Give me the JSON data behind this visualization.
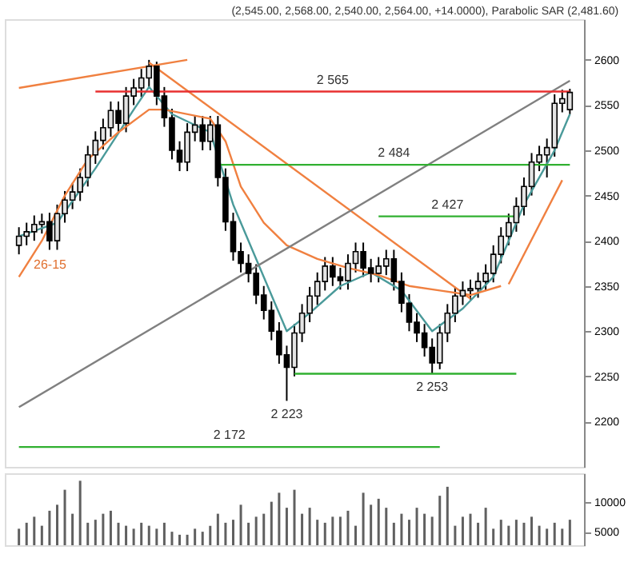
{
  "chart_data": [
    {
      "type": "candlestick",
      "title": "(2,545.00, 2,568.00, 2,540.00, 2,564.00, +14.0000), Parabolic SAR (2,481.60)",
      "categories": [
        null,
        null,
        null,
        null,
        null,
        null,
        null,
        null,
        null,
        null,
        null,
        null,
        null,
        null,
        null,
        null,
        null,
        null,
        null,
        null,
        null,
        null,
        null,
        null,
        null,
        null,
        null,
        null,
        null,
        null,
        null,
        null,
        null,
        null,
        null,
        null,
        null,
        null,
        null,
        null,
        null,
        null,
        null,
        null,
        null,
        null,
        null,
        null,
        null,
        null,
        null,
        null,
        null,
        null,
        null,
        null,
        null,
        null,
        null,
        null,
        null,
        null,
        null,
        null,
        null,
        null,
        null,
        null,
        null,
        null,
        null,
        null,
        null
      ],
      "ohlc": [
        [
          2395,
          2415,
          2385,
          2405
        ],
        [
          2405,
          2420,
          2395,
          2410
        ],
        [
          2410,
          2428,
          2400,
          2418
        ],
        [
          2418,
          2430,
          2408,
          2421
        ],
        [
          2421,
          2431,
          2390,
          2400
        ],
        [
          2400,
          2440,
          2390,
          2430
        ],
        [
          2430,
          2455,
          2420,
          2445
        ],
        [
          2445,
          2464,
          2435,
          2454
        ],
        [
          2454,
          2480,
          2444,
          2470
        ],
        [
          2470,
          2505,
          2460,
          2495
        ],
        [
          2495,
          2521,
          2485,
          2511
        ],
        [
          2511,
          2535,
          2501,
          2525
        ],
        [
          2525,
          2554,
          2515,
          2544
        ],
        [
          2544,
          2554,
          2520,
          2530
        ],
        [
          2530,
          2570,
          2520,
          2560
        ],
        [
          2560,
          2579,
          2550,
          2569
        ],
        [
          2569,
          2590,
          2559,
          2580
        ],
        [
          2580,
          2600,
          2570,
          2593
        ],
        [
          2593,
          2598,
          2550,
          2560
        ],
        [
          2560,
          2570,
          2526,
          2536
        ],
        [
          2536,
          2546,
          2490,
          2500
        ],
        [
          2500,
          2510,
          2477,
          2487
        ],
        [
          2487,
          2530,
          2477,
          2520
        ],
        [
          2520,
          2538,
          2510,
          2528
        ],
        [
          2528,
          2538,
          2500,
          2510
        ],
        [
          2510,
          2538,
          2500,
          2528
        ],
        [
          2528,
          2538,
          2460,
          2470
        ],
        [
          2470,
          2480,
          2411,
          2421
        ],
        [
          2421,
          2431,
          2378,
          2388
        ],
        [
          2388,
          2398,
          2365,
          2375
        ],
        [
          2375,
          2385,
          2354,
          2364
        ],
        [
          2364,
          2374,
          2330,
          2340
        ],
        [
          2340,
          2350,
          2313,
          2323
        ],
        [
          2323,
          2333,
          2290,
          2300
        ],
        [
          2300,
          2310,
          2264,
          2274
        ],
        [
          2274,
          2284,
          2223,
          2260
        ],
        [
          2260,
          2308,
          2250,
          2298
        ],
        [
          2298,
          2330,
          2288,
          2320
        ],
        [
          2320,
          2349,
          2310,
          2339
        ],
        [
          2339,
          2365,
          2329,
          2355
        ],
        [
          2355,
          2382,
          2345,
          2372
        ],
        [
          2372,
          2382,
          2350,
          2360
        ],
        [
          2360,
          2370,
          2346,
          2356
        ],
        [
          2356,
          2385,
          2346,
          2375
        ],
        [
          2375,
          2398,
          2365,
          2388
        ],
        [
          2388,
          2398,
          2360,
          2370
        ],
        [
          2370,
          2380,
          2354,
          2364
        ],
        [
          2364,
          2382,
          2354,
          2372
        ],
        [
          2372,
          2390,
          2362,
          2380
        ],
        [
          2380,
          2390,
          2345,
          2355
        ],
        [
          2355,
          2365,
          2321,
          2331
        ],
        [
          2331,
          2341,
          2300,
          2310
        ],
        [
          2310,
          2320,
          2288,
          2298
        ],
        [
          2298,
          2308,
          2272,
          2282
        ],
        [
          2282,
          2292,
          2253,
          2265
        ],
        [
          2265,
          2308,
          2258,
          2298
        ],
        [
          2298,
          2330,
          2288,
          2320
        ],
        [
          2320,
          2349,
          2310,
          2339
        ],
        [
          2339,
          2355,
          2329,
          2345
        ],
        [
          2345,
          2357,
          2335,
          2347
        ],
        [
          2347,
          2365,
          2337,
          2355
        ],
        [
          2355,
          2374,
          2345,
          2364
        ],
        [
          2364,
          2395,
          2354,
          2385
        ],
        [
          2385,
          2415,
          2375,
          2405
        ],
        [
          2405,
          2430,
          2395,
          2420
        ],
        [
          2420,
          2448,
          2410,
          2438
        ],
        [
          2438,
          2470,
          2428,
          2460
        ],
        [
          2460,
          2497,
          2450,
          2487
        ],
        [
          2487,
          2505,
          2477,
          2495
        ],
        [
          2495,
          2513,
          2470,
          2503
        ],
        [
          2503,
          2562,
          2493,
          2552
        ],
        [
          2552,
          2567,
          2542,
          2557
        ],
        [
          2545,
          2568,
          2540,
          2564
        ]
      ],
      "series": [
        {
          "type": "line",
          "color": "#4a9a9a",
          "values": [
            2405,
            null,
            null,
            null,
            null,
            2420,
            null,
            null,
            null,
            null,
            2480,
            null,
            null,
            null,
            null,
            2545,
            null,
            2570,
            null,
            null,
            2540,
            null,
            null,
            null,
            null,
            2520,
            null,
            null,
            2440,
            null,
            null,
            null,
            2360,
            null,
            null,
            2300,
            null,
            null,
            2320,
            null,
            null,
            null,
            2350,
            null,
            null,
            null,
            2365,
            null,
            null,
            null,
            2345,
            null,
            null,
            null,
            2300,
            null,
            null,
            null,
            2325,
            null,
            null,
            null,
            2360,
            null,
            null,
            null,
            2440,
            null,
            null,
            null,
            2500,
            null,
            2540
          ]
        },
        {
          "type": "line",
          "color": "#f08040",
          "values": [
            2360,
            null,
            null,
            2400,
            null,
            null,
            2450,
            null,
            null,
            2490,
            null,
            null,
            null,
            2520,
            null,
            null,
            null,
            2545,
            null,
            2545,
            null,
            null,
            null,
            null,
            null,
            2535,
            null,
            2510,
            null,
            2460,
            null,
            null,
            2420,
            null,
            null,
            2395,
            null,
            null,
            null,
            2380,
            null,
            null,
            null,
            2370,
            null,
            null,
            null,
            2362,
            null,
            null,
            null,
            2350,
            null,
            null,
            null,
            2345,
            null,
            null,
            null,
            2340,
            null,
            null,
            null,
            2350,
            null,
            null,
            null,
            null,
            null,
            null,
            null,
            null,
            null
          ]
        },
        {
          "type": "line",
          "color": "#f08040",
          "values": [
            2569,
            null,
            null,
            null,
            null,
            null,
            null,
            null,
            null,
            null,
            null,
            null,
            null,
            null,
            null,
            null,
            null,
            null,
            null,
            null,
            null,
            null,
            2600,
            null,
            null,
            null,
            null,
            null,
            null,
            null,
            null,
            null,
            null,
            null,
            null,
            null,
            null,
            null,
            null,
            null,
            null,
            null,
            null,
            null,
            null,
            null,
            null,
            null,
            null,
            null,
            null,
            null,
            null,
            null,
            null,
            null,
            null,
            null,
            null,
            null,
            null,
            null,
            null,
            null,
            null,
            null,
            null,
            null,
            null,
            null,
            null,
            null,
            null
          ]
        },
        {
          "type": "line",
          "color": "#f08040",
          "values": [
            null,
            null,
            null,
            null,
            null,
            null,
            null,
            null,
            null,
            null,
            null,
            null,
            null,
            null,
            null,
            null,
            null,
            2597,
            null,
            null,
            null,
            null,
            null,
            null,
            null,
            null,
            null,
            null,
            null,
            null,
            null,
            null,
            null,
            null,
            null,
            null,
            null,
            null,
            null,
            null,
            null,
            null,
            null,
            null,
            null,
            null,
            null,
            null,
            null,
            null,
            null,
            null,
            null,
            null,
            null,
            null,
            null,
            null,
            null,
            2336,
            null,
            null,
            null,
            null,
            null,
            null,
            null,
            null,
            null,
            null,
            null,
            null,
            null
          ]
        },
        {
          "type": "line",
          "color": "#f08040",
          "values": [
            null,
            null,
            null,
            null,
            null,
            null,
            null,
            null,
            null,
            null,
            null,
            null,
            null,
            null,
            null,
            null,
            null,
            null,
            null,
            null,
            null,
            null,
            null,
            null,
            null,
            null,
            null,
            null,
            null,
            null,
            null,
            null,
            null,
            null,
            null,
            null,
            null,
            null,
            null,
            null,
            null,
            null,
            null,
            null,
            null,
            null,
            null,
            null,
            null,
            null,
            null,
            null,
            null,
            null,
            null,
            null,
            null,
            null,
            null,
            null,
            null,
            null,
            null,
            null,
            2352,
            null,
            null,
            null,
            null,
            null,
            null,
            2467,
            null
          ]
        },
        {
          "type": "line",
          "color": "#808080",
          "values": [
            2216,
            null,
            null,
            null,
            null,
            null,
            null,
            null,
            null,
            null,
            null,
            null,
            null,
            null,
            null,
            null,
            null,
            null,
            null,
            null,
            null,
            null,
            null,
            null,
            null,
            null,
            null,
            null,
            null,
            null,
            null,
            null,
            null,
            null,
            null,
            null,
            null,
            null,
            null,
            null,
            null,
            null,
            null,
            null,
            null,
            null,
            null,
            null,
            null,
            null,
            null,
            null,
            null,
            null,
            null,
            null,
            null,
            null,
            null,
            null,
            null,
            null,
            null,
            null,
            null,
            null,
            null,
            null,
            null,
            null,
            null,
            null,
            2577
          ]
        },
        {
          "type": "line",
          "color": "#e83030",
          "values": [
            null,
            null,
            null,
            null,
            null,
            null,
            null,
            null,
            null,
            null,
            2565,
            null,
            null,
            null,
            null,
            null,
            null,
            null,
            null,
            null,
            null,
            null,
            null,
            null,
            null,
            null,
            null,
            null,
            null,
            null,
            null,
            null,
            null,
            null,
            null,
            null,
            null,
            null,
            null,
            null,
            null,
            null,
            null,
            null,
            null,
            null,
            null,
            null,
            null,
            null,
            null,
            null,
            null,
            null,
            null,
            null,
            null,
            null,
            null,
            null,
            null,
            null,
            null,
            null,
            null,
            null,
            null,
            null,
            null,
            null,
            null,
            null,
            2565
          ]
        },
        {
          "type": "line",
          "color": "#30b030",
          "values": [
            null,
            null,
            null,
            null,
            null,
            null,
            null,
            null,
            null,
            null,
            null,
            null,
            null,
            null,
            null,
            null,
            null,
            null,
            null,
            null,
            null,
            null,
            null,
            null,
            null,
            null,
            2484,
            null,
            null,
            null,
            null,
            null,
            null,
            null,
            null,
            null,
            null,
            null,
            null,
            null,
            null,
            null,
            null,
            null,
            null,
            null,
            null,
            null,
            null,
            null,
            null,
            null,
            null,
            null,
            null,
            null,
            null,
            null,
            null,
            null,
            null,
            null,
            null,
            null,
            null,
            null,
            null,
            null,
            null,
            null,
            null,
            null,
            2484
          ]
        },
        {
          "type": "line",
          "color": "#30b030",
          "values": [
            null,
            null,
            null,
            null,
            null,
            null,
            null,
            null,
            null,
            null,
            null,
            null,
            null,
            null,
            null,
            null,
            null,
            null,
            null,
            null,
            null,
            null,
            null,
            null,
            null,
            null,
            null,
            null,
            null,
            null,
            null,
            null,
            null,
            null,
            null,
            null,
            null,
            null,
            null,
            null,
            null,
            null,
            null,
            null,
            null,
            null,
            null,
            2427,
            null,
            null,
            null,
            null,
            null,
            null,
            null,
            null,
            null,
            null,
            null,
            null,
            null,
            null,
            null,
            null,
            null,
            2427,
            null,
            null,
            null,
            null,
            null,
            null,
            null
          ]
        },
        {
          "type": "line",
          "color": "#30b030",
          "values": [
            null,
            null,
            null,
            null,
            null,
            null,
            null,
            null,
            null,
            null,
            null,
            null,
            null,
            null,
            null,
            null,
            null,
            null,
            null,
            null,
            null,
            null,
            null,
            null,
            null,
            null,
            null,
            null,
            null,
            null,
            null,
            null,
            null,
            null,
            null,
            null,
            2253,
            null,
            null,
            null,
            null,
            null,
            null,
            null,
            null,
            null,
            null,
            null,
            null,
            null,
            null,
            null,
            null,
            null,
            null,
            null,
            null,
            null,
            null,
            null,
            null,
            null,
            null,
            null,
            null,
            2253,
            null,
            null,
            null,
            null,
            null,
            null,
            null
          ]
        },
        {
          "type": "line",
          "color": "#30b030",
          "values": [
            2172,
            null,
            null,
            null,
            null,
            null,
            null,
            null,
            null,
            null,
            null,
            null,
            null,
            null,
            null,
            null,
            null,
            null,
            null,
            null,
            null,
            null,
            null,
            null,
            null,
            null,
            null,
            null,
            null,
            null,
            null,
            null,
            null,
            null,
            null,
            null,
            null,
            null,
            null,
            null,
            null,
            null,
            null,
            null,
            null,
            null,
            null,
            null,
            null,
            null,
            null,
            null,
            null,
            null,
            null,
            2172,
            null,
            null,
            null,
            null,
            null,
            null,
            null,
            null,
            null,
            null,
            null,
            null,
            null,
            null,
            null,
            null,
            null
          ]
        }
      ],
      "annotations": [
        {
          "text": "2 565",
          "y": 2565
        },
        {
          "text": "2 484",
          "y": 2484
        },
        {
          "text": "2 427",
          "y": 2427
        },
        {
          "text": "2 253",
          "y": 2253
        },
        {
          "text": "2 223",
          "y": 2223
        },
        {
          "text": "2 172",
          "y": 2172
        },
        "26-15"
      ],
      "ylim": [
        2150,
        2645
      ],
      "yticks": [
        2200,
        2250,
        2300,
        2350,
        2400,
        2450,
        2500,
        2550,
        2600
      ],
      "tick_labels": "y"
    },
    {
      "type": "bar",
      "color": "#606060",
      "categories": [
        null,
        null,
        null,
        null,
        null,
        null,
        null,
        null,
        null,
        null,
        null,
        null,
        null,
        null,
        null,
        null,
        null,
        null,
        null,
        null,
        null,
        null,
        null,
        null,
        null,
        null,
        null,
        null,
        null,
        null,
        null,
        null,
        null,
        null,
        null,
        null,
        null,
        null,
        null,
        null,
        null,
        null,
        null,
        null,
        null,
        null,
        null,
        null,
        null,
        null,
        null,
        null,
        null,
        null,
        null,
        null,
        null,
        null,
        null,
        null,
        null,
        null,
        null,
        null,
        null,
        null,
        null,
        null,
        null,
        null,
        null,
        null,
        null
      ],
      "values": [
        5500,
        6500,
        7500,
        6000,
        8500,
        9500,
        12000,
        8000,
        13500,
        6500,
        7000,
        8000,
        8500,
        6500,
        6000,
        5500,
        6500,
        6000,
        5500,
        6500,
        5000,
        4500,
        4500,
        5500,
        5000,
        6000,
        8000,
        6500,
        7000,
        9500,
        6500,
        7500,
        8000,
        10000,
        11500,
        9000,
        12000,
        8000,
        9000,
        7000,
        6500,
        7500,
        7500,
        8500,
        6000,
        11500,
        9500,
        10500,
        9000,
        6500,
        8000,
        7000,
        9000,
        8000,
        7500,
        11000,
        12500,
        6000,
        7500,
        8000,
        6500,
        9000,
        5500,
        7000,
        6000,
        7000,
        6500,
        7500,
        6000,
        5500,
        6500,
        5500,
        7000
      ],
      "ylim": [
        2750,
        14750
      ],
      "yticks": [
        5000,
        10000
      ],
      "tick_labels": "y"
    }
  ]
}
